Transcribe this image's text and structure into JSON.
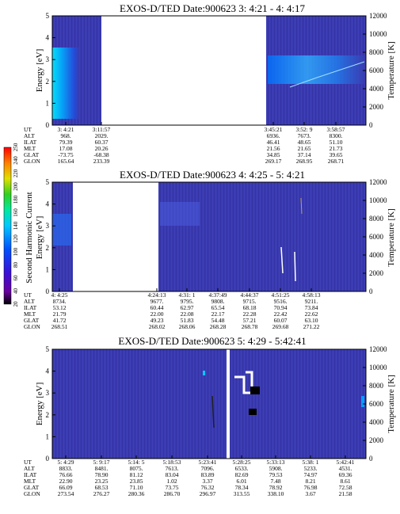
{
  "colors": {
    "background": "#3a3ab0",
    "gap": "#ffffff",
    "colorbar": [
      "#000000",
      "#7a00a0",
      "#3a00d8",
      "#0050ff",
      "#00c8ff",
      "#00e8a0",
      "#30d020",
      "#e0e000",
      "#ff8000",
      "#ff0000"
    ]
  },
  "colorbar": {
    "label": "Second Harmonic Current",
    "ticks": [
      "20",
      "40",
      "60",
      "80",
      "100",
      "120",
      "140",
      "160",
      "180",
      "200",
      "220",
      "240",
      "250"
    ]
  },
  "chart_data": [
    {
      "type": "heatmap",
      "title": "EXOS-D/TED   Date:900623  3: 4:21 - 4: 4:17",
      "ylabel": "Energy [eV]",
      "y2label": "Temperature [K]",
      "ylim": [
        0,
        5
      ],
      "y2lim": [
        0,
        12000
      ],
      "yticks": [
        "0",
        "1",
        "2",
        "3",
        "4",
        "5"
      ],
      "y2ticks": [
        "0",
        "2000",
        "4000",
        "6000",
        "8000",
        "10000",
        "12000"
      ],
      "data_gap": "3:11:57 - 3:45:21",
      "ephemeris": {
        "labels": [
          "UT",
          "ALT",
          "ILAT",
          "MLT",
          "GLAT",
          "GLON"
        ],
        "columns": [
          [
            "3: 4:21",
            "968.",
            "79.39",
            "17.08",
            "-73.75",
            "165.64"
          ],
          [
            "3:11:57",
            "2029.",
            "60.37",
            "20.26",
            "-68.38",
            "233.39"
          ],
          [
            "3:45:21",
            "6936.",
            "46.41",
            "21.56",
            "34.85",
            "269.17"
          ],
          [
            "3:52: 9",
            "7673.",
            "48.65",
            "21.65",
            "37.14",
            "268.95"
          ],
          [
            "3:58:57",
            "8300.",
            "51.10",
            "21.73",
            "39.65",
            "268.71"
          ]
        ]
      }
    },
    {
      "type": "heatmap",
      "title": "EXOS-D/TED   Date:900623  4: 4:25 - 5: 4:21",
      "ylabel": "Energy [eV]",
      "y2label": "Temperature [K]",
      "ylim": [
        0,
        5
      ],
      "y2lim": [
        0,
        12000
      ],
      "yticks": [
        "0",
        "1",
        "2",
        "3",
        "4",
        "5"
      ],
      "y2ticks": [
        "0",
        "2000",
        "4000",
        "6000",
        "8000",
        "10000",
        "12000"
      ],
      "data_gap": "4:07 - 4:24:13",
      "ephemeris": {
        "labels": [
          "UT",
          "ALT",
          "ILAT",
          "MLT",
          "GLAT",
          "GLON"
        ],
        "columns": [
          [
            "4: 4:25",
            "8734.",
            "53.12",
            "21.79",
            "41.72",
            "268.51"
          ],
          [
            "4:24:13",
            "9677.",
            "60.44",
            "22.00",
            "49.23",
            "268.02"
          ],
          [
            "4:31: 1",
            "9795.",
            "62.97",
            "22.08",
            "51.83",
            "268.06"
          ],
          [
            "4:37:49",
            "9808.",
            "65.54",
            "22.17",
            "54.48",
            "268.28"
          ],
          [
            "4:44:37",
            "9715.",
            "68.18",
            "22.28",
            "57.21",
            "268.78"
          ],
          [
            "4:51:25",
            "9516.",
            "70.94",
            "22.42",
            "60.07",
            "269.68"
          ],
          [
            "4:58:13",
            "9211.",
            "73.84",
            "22.62",
            "63.10",
            "271.22"
          ]
        ]
      }
    },
    {
      "type": "heatmap",
      "title": "EXOS-D/TED   Date:900623  5: 4:29 - 5:42:41",
      "ylabel": "Energy [eV]",
      "y2label": "Temperature [K]",
      "ylim": [
        0,
        5
      ],
      "y2lim": [
        0,
        12000
      ],
      "yticks": [
        "0",
        "1",
        "2",
        "3",
        "4",
        "5"
      ],
      "y2ticks": [
        "0",
        "2000",
        "4000",
        "6000",
        "8000",
        "10000",
        "12000"
      ],
      "ephemeris": {
        "labels": [
          "UT",
          "ALT",
          "ILAT",
          "MLT",
          "GLAT",
          "GLON"
        ],
        "columns": [
          [
            "5: 4:29",
            "8833.",
            "76.66",
            "22.90",
            "66.09",
            "273.54"
          ],
          [
            "5: 9:17",
            "8481.",
            "78.90",
            "23.25",
            "68.53",
            "276.27"
          ],
          [
            "5:14: 5",
            "8075.",
            "81.12",
            "23.85",
            "71.10",
            "280.36"
          ],
          [
            "5:18:53",
            "7613.",
            "83.04",
            "1.02",
            "73.75",
            "286.70"
          ],
          [
            "5:23:41",
            "7096.",
            "83.89",
            "3.37",
            "76.32",
            "296.97"
          ],
          [
            "5:28:25",
            "6533.",
            "82.69",
            "6.01",
            "78.34",
            "313.55"
          ],
          [
            "5:33:13",
            "5908.",
            "79.53",
            "7.48",
            "78.92",
            "338.10"
          ],
          [
            "5:38: 1",
            "5233.",
            "74.97",
            "8.21",
            "76.98",
            "3.67"
          ],
          [
            "5:42:41",
            "4531.",
            "69.36",
            "8.61",
            "72.58",
            "21.58"
          ]
        ]
      }
    }
  ]
}
